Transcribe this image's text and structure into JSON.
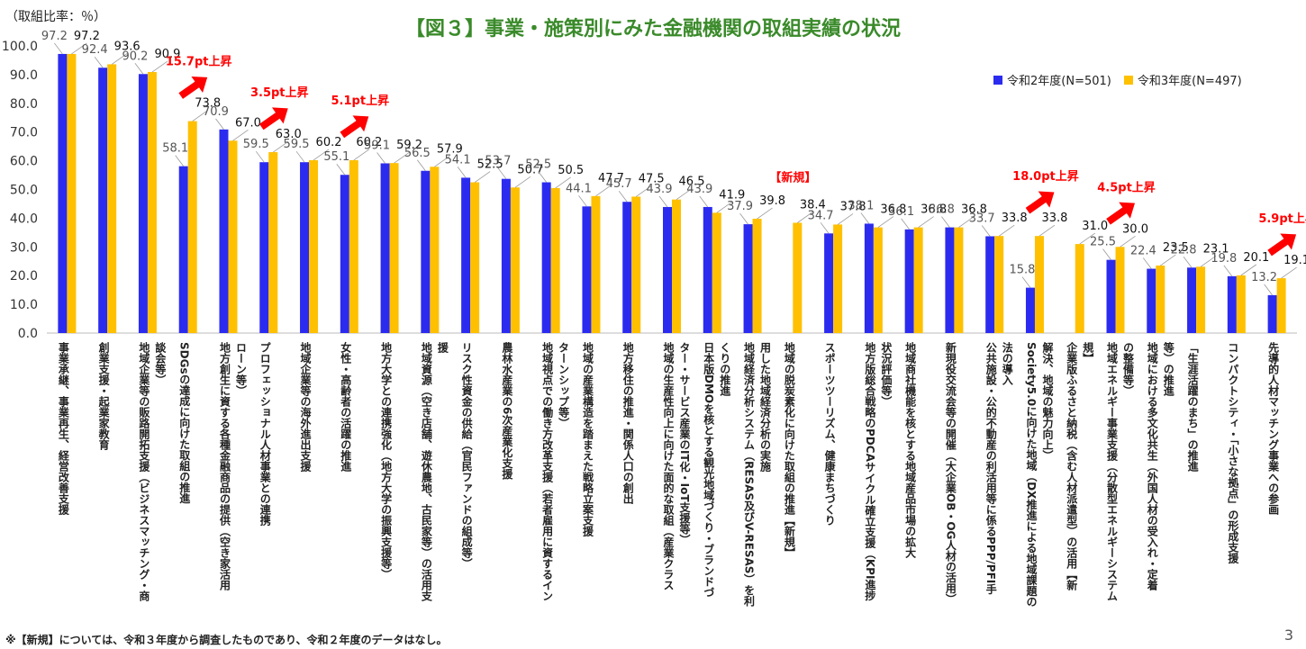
{
  "page": {
    "title": "【図３】事業・施策別にみた金融機関の取組実績の状況",
    "unit_label": "（取組比率：％）",
    "footnote": "※【新規】については、令和３年度から調査したものであり、令和２年度のデータはなし。",
    "page_number": "3"
  },
  "colors": {
    "series1": "#2b2bf0",
    "series2": "#ffc000",
    "arrow": "#ff0000",
    "annotation": "#ff0000",
    "title": "#3a8a2a"
  },
  "chart_data": {
    "type": "bar",
    "title": "【図３】事業・施策別にみた金融機関の取組実績の状況",
    "ylabel": "（取組比率：％）",
    "ylim": [
      0,
      100
    ],
    "yticks": [
      "0.0",
      "10.0",
      "20.0",
      "30.0",
      "40.0",
      "50.0",
      "60.0",
      "70.0",
      "80.0",
      "90.0",
      "100.0"
    ],
    "legend_position": "top-right",
    "grid": false,
    "categories": [
      "事業承継、事業再生、経営改善支援",
      "創業支援・起業家教育",
      "地域企業等の販路開拓支援（ビジネスマッチング・商談会等）",
      "SDGsの達成に向けた取組の推進",
      "地方創生に資する各種金融商品の提供（空き家活用ローン等）",
      "プロフェッショナル人材事業との連携",
      "地域企業等の海外進出支援",
      "女性・高齢者の活躍の推進",
      "地方大学との連携強化（地方大学の振興支援等）",
      "地域資源（空き店舗、遊休農地、古民家等）の活用支援",
      "リスク性資金の供給（官民ファンドの組成等）",
      "農林水産業の6次産業化支援",
      "地域視点での働き方改革支援（若者雇用に資するインターンシップ等）",
      "地域の産業構造を踏まえた戦略立案支援",
      "地方移住の推進・関係人口の創出",
      "地域の生産性向上に向けた面的な取組（産業クラスター・サービス産業のIT化・IoT支援等）",
      "日本版DMOを核とする観光地域づくり・ブランドづくりの推進",
      "地域経済分析システム（RESAS及びV-RESAS）を利用した地域経済分析の実施",
      "地域の脱炭素化に向けた取組の推進【新規】",
      "スポーツツーリズム、健康まちづくり",
      "地方版総合戦略のPDCAサイクル確立支援（KPI進捗状況評価等）",
      "地域商社機能を核とする地域産品市場の拡大",
      "新現役交流会等の開催（大企業OB・OG人材の活用）",
      "公共施設・公的不動産の利活用等に係るPPP/PFI手法の導入",
      "Society5.0に向けた地域（DX推進による地域課題の解決、地域の魅力向上）",
      "企業版ふるさと納税（含む人材派遣型）の活用【新規】",
      "地域エネルギー事業支援（分散型エネルギーシステムの整備等）",
      "地域における多文化共生（外国人材の受入れ・定着等）の推進",
      "「生涯活躍のまち」の推進",
      "コンパクトシティ・「小さな拠点」の形成支援",
      "先導的人材マッチング事業への参画"
    ],
    "label_lines": [
      [
        "事業承継、事業再生、経営改善支援"
      ],
      [
        "創業支援・起業家教育"
      ],
      [
        "地域企業等の販路開拓支援（ビジネスマッチング・商",
        "談会等）"
      ],
      [
        "SDGsの達成に向けた取組の推進"
      ],
      [
        "地方創生に資する各種金融商品の提供（空き家活用",
        "ローン等）"
      ],
      [
        "プロフェッショナル人材事業との連携"
      ],
      [
        "地域企業等の海外進出支援"
      ],
      [
        "女性・高齢者の活躍の推進"
      ],
      [
        "地方大学との連携強化（地方大学の振興支援等）"
      ],
      [
        "地域資源（空き店舗、遊休農地、古民家等）の活用支",
        "援"
      ],
      [
        "リスク性資金の供給（官民ファンドの組成等）"
      ],
      [
        "農林水産業の6次産業化支援"
      ],
      [
        "地域視点での働き方改革支援（若者雇用に資するイン",
        "ターンシップ等）"
      ],
      [
        "地域の産業構造を踏まえた戦略立案支援"
      ],
      [
        "地方移住の推進・関係人口の創出"
      ],
      [
        "地域の生産性向上に向けた面的な取組（産業クラス",
        "ター・サービス産業のIT化・IoT支援等）"
      ],
      [
        "日本版DMOを核とする観光地域づくり・ブランドづ",
        "くりの推進"
      ],
      [
        "地域経済分析システム（RESAS及びV-RESAS）を利",
        "用した地域経済分析の実施"
      ],
      [
        "地域の脱炭素化に向けた取組の推進【新規】"
      ],
      [
        "スポーツツーリズム、健康まちづくり"
      ],
      [
        "地方版総合戦略のPDCAサイクル確立支援（KPI進捗",
        "状況評価等）"
      ],
      [
        "地域商社機能を核とする地域産品市場の拡大"
      ],
      [
        "新現役交流会等の開催（大企業OB・OG人材の活用）"
      ],
      [
        "公共施設・公的不動産の利活用等に係るPPP/PFI手",
        "法の導入"
      ],
      [
        "Society5.0に向けた地域（DX推進による地域課題の",
        "解決、地域の魅力向上）"
      ],
      [
        "企業版ふるさと納税（含む人材派遣型）の活用【新",
        "規】"
      ],
      [
        "地域エネルギー事業支援（分散型エネルギーシステム",
        "の整備等）"
      ],
      [
        "地域における多文化共生（外国人材の受入れ・定着",
        "等）の推進"
      ],
      [
        "「生涯活躍のまち」の推進"
      ],
      [
        "コンパクトシティ・「小さな拠点」の形成支援"
      ],
      [
        "先導的人材マッチング事業への参画"
      ]
    ],
    "series": [
      {
        "name": "令和2年度(N=501)",
        "values": [
          97.2,
          92.4,
          90.2,
          58.1,
          70.9,
          59.5,
          59.5,
          55.1,
          59.1,
          56.5,
          54.1,
          53.7,
          52.5,
          44.1,
          45.7,
          43.9,
          43.9,
          37.9,
          null,
          34.7,
          38.1,
          36.1,
          36.8,
          33.7,
          15.8,
          null,
          25.5,
          22.4,
          22.8,
          19.8,
          13.2
        ]
      },
      {
        "name": "令和3年度(N=497)",
        "values": [
          97.2,
          93.6,
          90.9,
          73.8,
          67.0,
          63.0,
          60.2,
          60.2,
          59.2,
          57.9,
          52.5,
          50.7,
          50.5,
          47.7,
          47.5,
          46.5,
          41.9,
          39.8,
          38.4,
          37.8,
          36.8,
          36.8,
          36.8,
          33.8,
          33.8,
          31.0,
          30.0,
          23.5,
          23.1,
          20.1,
          19.1
        ]
      }
    ],
    "annotations": [
      {
        "category_index": 3,
        "text": "15.7pt上昇"
      },
      {
        "category_index": 5,
        "text": "3.5pt上昇"
      },
      {
        "category_index": 7,
        "text": "5.1pt上昇"
      },
      {
        "category_index": 24,
        "text": "18.0pt上昇"
      },
      {
        "category_index": 26,
        "text": "4.5pt上昇"
      },
      {
        "category_index": 30,
        "text": "5.9pt上昇"
      }
    ],
    "new_markers": [
      {
        "category_index": 18,
        "text": "【新規】"
      }
    ]
  }
}
